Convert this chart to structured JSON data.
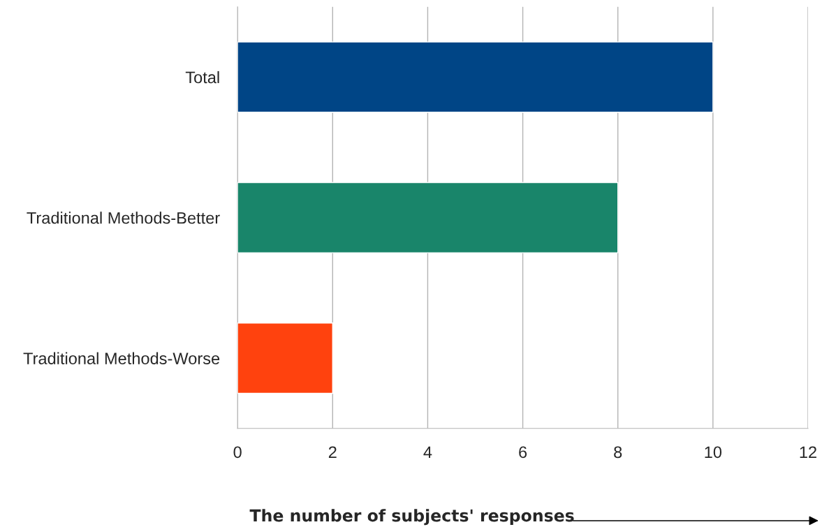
{
  "chart_data": {
    "type": "bar",
    "orientation": "horizontal",
    "xlabel": "The number of subjects' responses",
    "categories": [
      "Total",
      "Traditional Methods-Better",
      "Traditional Methods-Worse"
    ],
    "values": [
      10,
      8,
      2
    ],
    "colors": [
      "#004586",
      "#19856a",
      "#ff420e"
    ],
    "xlim": [
      0,
      12
    ],
    "xticks": [
      0,
      2,
      4,
      6,
      8,
      10,
      12
    ],
    "grid": "x",
    "legend": false
  }
}
